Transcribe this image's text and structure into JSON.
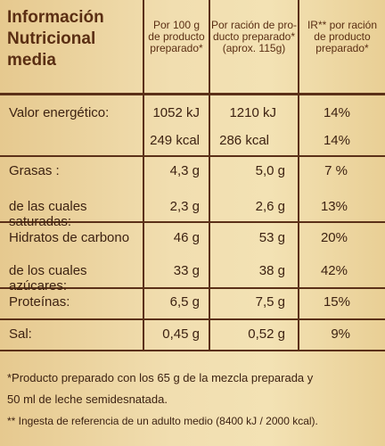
{
  "header": {
    "col0": [
      "Información",
      "Nutricional",
      "media"
    ],
    "col1": [
      "Por 100 g",
      "de producto",
      "preparado*"
    ],
    "col2": [
      "Por ración de pro-",
      "ducto preparado*",
      "(aprox. 115g)"
    ],
    "col3": [
      "IR** por ración",
      "de producto",
      "preparado*"
    ]
  },
  "rows": [
    {
      "label": "Valor energético:",
      "per100": "1052 kJ",
      "perRacion": "1210 kJ",
      "ir": "14%"
    },
    {
      "label": "",
      "per100": "249 kcal",
      "perRacion": "286 kcal",
      "ir": "14%"
    },
    {
      "label": "Grasas :",
      "per100": "4,3 g",
      "perRacion": "5,0 g",
      "ir": "7 %"
    },
    {
      "label": "de las cuales saturadas:",
      "per100": "2,3 g",
      "perRacion": "2,6 g",
      "ir": "13%"
    },
    {
      "label": "Hidratos de carbono",
      "per100": "46 g",
      "perRacion": "53 g",
      "ir": "20%"
    },
    {
      "label": "de los cuales azúcares:",
      "per100": "33 g",
      "perRacion": "38 g",
      "ir": "42%"
    },
    {
      "label": "Proteínas:",
      "per100": "6,5 g",
      "perRacion": "7,5 g",
      "ir": "15%"
    },
    {
      "label": "Sal:",
      "per100": "0,45 g",
      "perRacion": "0,52 g",
      "ir": "9%"
    }
  ],
  "footnotes": [
    "*Producto preparado con los 65 g de la mezcla preparada y",
    "50 ml de leche semidesnatada.",
    "** Ingesta de referencia de un adulto medio (8400 kJ / 2000 kcal)."
  ]
}
